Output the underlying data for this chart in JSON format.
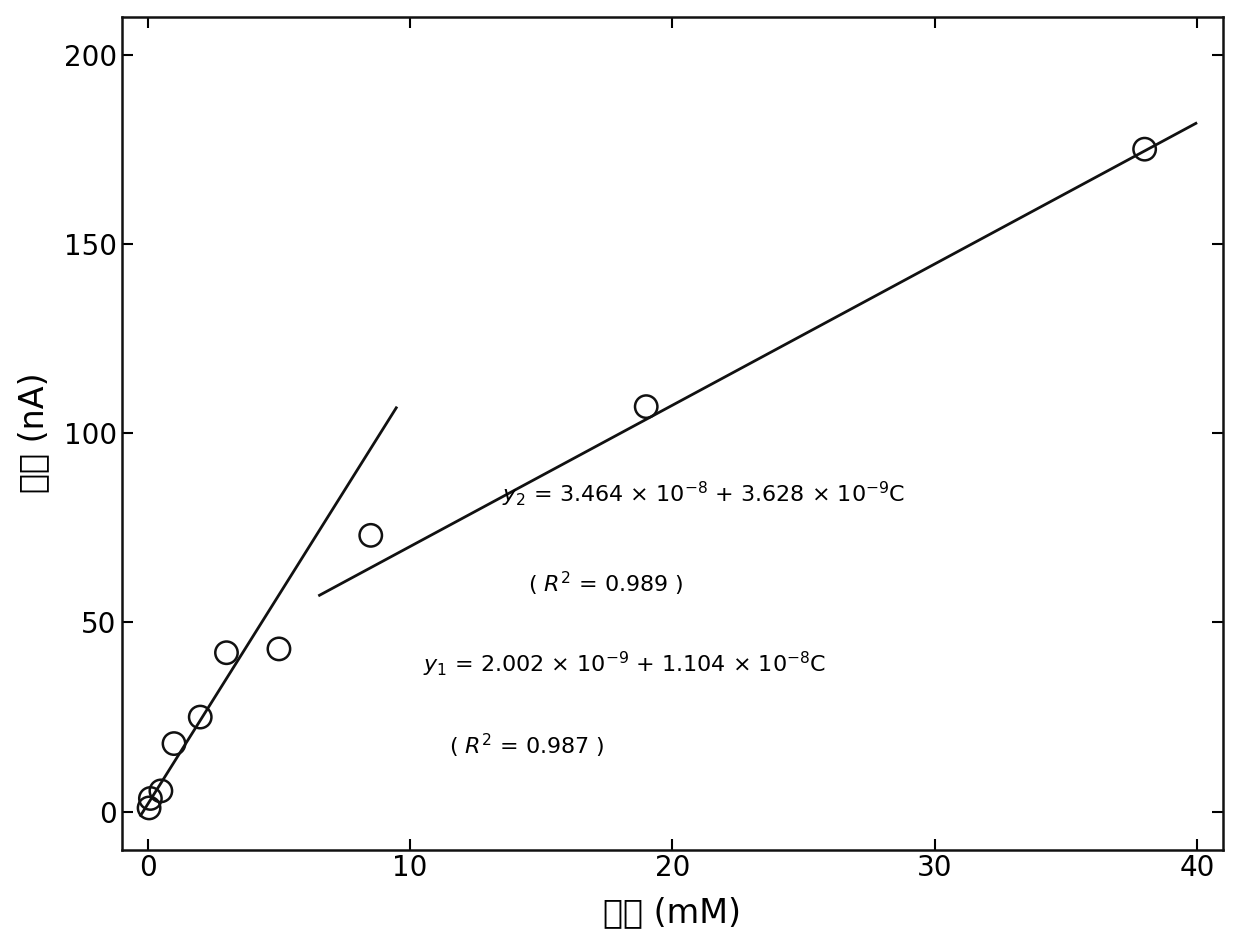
{
  "scatter_x": [
    0.05,
    0.1,
    0.5,
    1.0,
    2.0,
    3.0,
    5.0,
    8.5,
    19.0,
    38.0
  ],
  "scatter_y": [
    1.0,
    3.5,
    5.5,
    18.0,
    25.0,
    42.0,
    43.0,
    73.0,
    107.0,
    175.0
  ],
  "line1_x": [
    -0.3,
    9.5
  ],
  "line1_y": [
    -1.3,
    107.0
  ],
  "line2_x": [
    6.5,
    40.0
  ],
  "line2_y": [
    57.0,
    182.0
  ],
  "xlabel": "浓度 (mM)",
  "ylabel": "电流 (nA)",
  "xlim": [
    -1.0,
    41
  ],
  "ylim": [
    -10,
    210
  ],
  "xticks": [
    0,
    10,
    20,
    30,
    40
  ],
  "yticks": [
    0,
    50,
    100,
    150,
    200
  ],
  "eq2_text_line1": "$y_{2}$ = 3.464 × 10$^{-8}$ + 3.628 × 10$^{-9}$C",
  "eq2_text_line2": "( $R^{2}$ = 0.989 )",
  "eq1_text_line1": "$y_{1}$ = 2.002 × 10$^{-9}$ + 1.104 × 10$^{-8}$C",
  "eq1_text_line2": "( $R^{2}$ = 0.987 )",
  "eq2_x": 13.5,
  "eq2_y": 80.0,
  "eq1_x": 10.5,
  "eq1_y": 35.0,
  "line_color": "#111111",
  "scatter_facecolor": "none",
  "scatter_edgecolor": "#111111",
  "background_color": "#ffffff",
  "tick_fontsize": 20,
  "label_fontsize": 24,
  "eq_fontsize": 16
}
